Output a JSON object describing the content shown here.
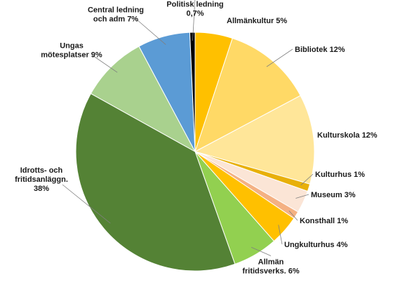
{
  "chart_data": {
    "type": "pie",
    "title": "",
    "slices": [
      {
        "name": "Allmänkultur",
        "value": 5,
        "label": [
          "Allmänkultur  5%"
        ],
        "color": "#FFC000"
      },
      {
        "name": "Bibliotek",
        "value": 12,
        "label": [
          "Bibliotek 12%"
        ],
        "color": "#FFD966"
      },
      {
        "name": "Kulturskola",
        "value": 12,
        "label": [
          "Kulturskola  12%"
        ],
        "color": "#FFE699"
      },
      {
        "name": "Kulturhus",
        "value": 1,
        "label": [
          "Kulturhus  1%"
        ],
        "color": "#E8B00A"
      },
      {
        "name": "Museum",
        "value": 3,
        "label": [
          "Museum  3%"
        ],
        "color": "#FBE5D6"
      },
      {
        "name": "Konsthall",
        "value": 1,
        "label": [
          "Konsthall  1%"
        ],
        "color": "#F4B183"
      },
      {
        "name": "Ungkulturhus",
        "value": 4,
        "label": [
          "Ungkulturhus  4%"
        ],
        "color": "#FFC000"
      },
      {
        "name": "Allmän fritidsverks.",
        "value": 6,
        "label": [
          "Allmän",
          "fritidsverks.  6%"
        ],
        "color": "#92D050"
      },
      {
        "name": "Idrotts- och fritidsanläggn.",
        "value": 38,
        "label": [
          "Idrotts- och",
          "fritidsanläggn.",
          "38%"
        ],
        "color": "#548235"
      },
      {
        "name": "Ungas mötesplatser",
        "value": 9,
        "label": [
          "Ungas",
          "mötesplatser 9%"
        ],
        "color": "#A9D18E"
      },
      {
        "name": "Central ledning och adm",
        "value": 7,
        "label": [
          "Central ledning",
          "och adm 7%"
        ],
        "color": "#5B9BD5"
      },
      {
        "name": "Politisk ledning",
        "value": 0.7,
        "label": [
          "Politisk ledning",
          "0,7%"
        ],
        "color": "#000000"
      }
    ]
  }
}
